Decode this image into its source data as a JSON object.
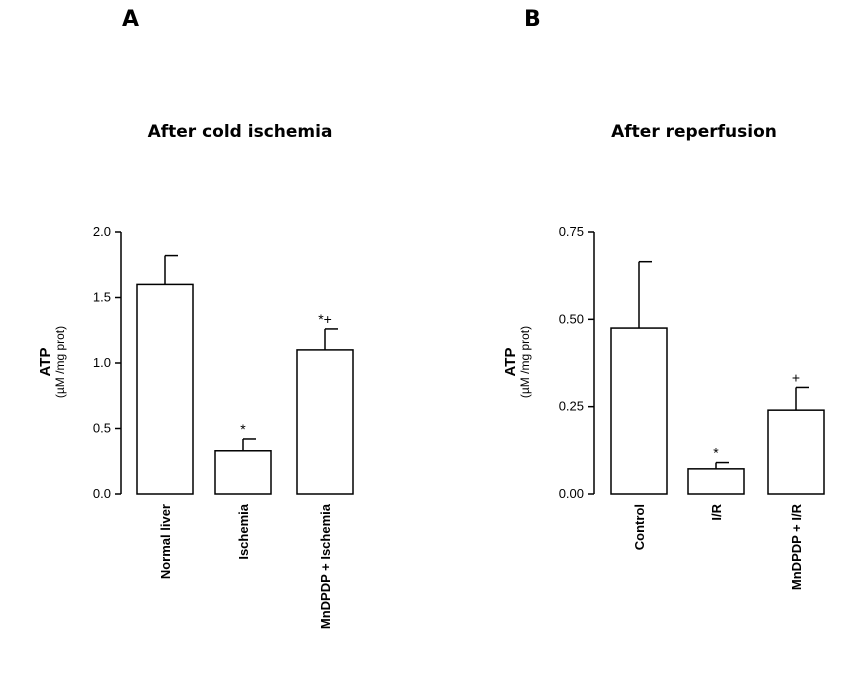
{
  "chart_data": [
    {
      "panel": "A",
      "type": "bar",
      "title": "After cold ischemia",
      "ylabel": "ATP",
      "yunit": "(µM /mg prot)",
      "ylim": [
        0,
        2.0
      ],
      "yticks": [
        "0.0",
        "0.5",
        "1.0",
        "1.5",
        "2.0"
      ],
      "ytick_values": [
        0,
        0.5,
        1.0,
        1.5,
        2.0
      ],
      "categories": [
        "Normal liver",
        "Ischemia",
        "MnDPDP + Ischemia"
      ],
      "values": [
        1.6,
        0.33,
        1.1
      ],
      "errors": [
        0.22,
        0.09,
        0.16
      ],
      "annotations": [
        "",
        "*",
        "*+"
      ]
    },
    {
      "panel": "B",
      "type": "bar",
      "title": "After reperfusion",
      "ylabel": "ATP",
      "yunit": "(µM /mg prot)",
      "ylim": [
        0,
        0.75
      ],
      "yticks": [
        "0.00",
        "0.25",
        "0.50",
        "0.75"
      ],
      "ytick_values": [
        0,
        0.25,
        0.5,
        0.75
      ],
      "categories": [
        "Control",
        "I/R",
        "MnDPDP + I/R"
      ],
      "values": [
        0.475,
        0.072,
        0.24
      ],
      "errors": [
        0.19,
        0.018,
        0.065
      ],
      "annotations": [
        "",
        "*",
        "+"
      ]
    }
  ]
}
